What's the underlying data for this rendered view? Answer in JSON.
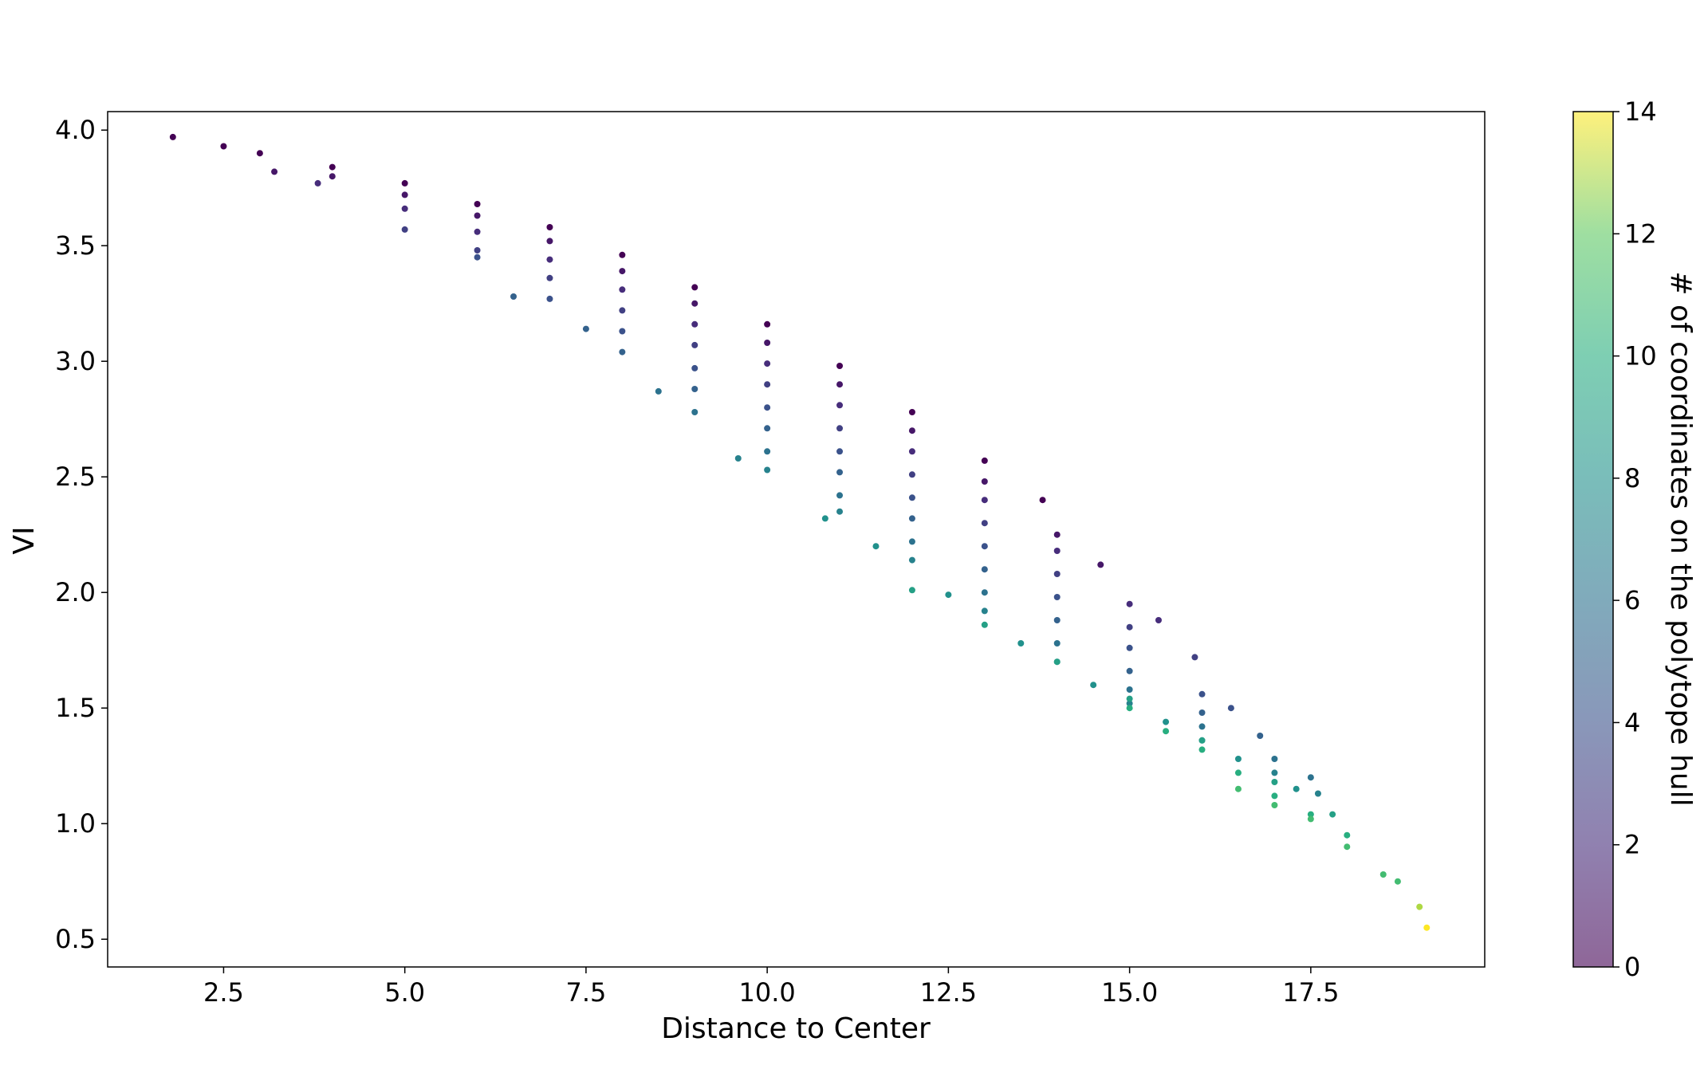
{
  "chart_data": {
    "type": "scatter",
    "title": "",
    "xlabel": "Distance to Center",
    "ylabel": "VI",
    "xlim": [
      0.9,
      19.9
    ],
    "ylim": [
      0.38,
      4.08
    ],
    "xticks": [
      "2.5",
      "5.0",
      "7.5",
      "10.0",
      "12.5",
      "15.0",
      "17.5"
    ],
    "yticks": [
      "0.5",
      "1.0",
      "1.5",
      "2.0",
      "2.5",
      "3.0",
      "3.5",
      "4.0"
    ],
    "colorbar": {
      "label": "# of coordinates on the polytope hull",
      "range": [
        0,
        14
      ],
      "ticks": [
        "0",
        "2",
        "4",
        "6",
        "8",
        "10",
        "12",
        "14"
      ],
      "colormap": "viridis",
      "alpha": 0.6
    },
    "grid": false,
    "legend": "none",
    "series": [
      {
        "color_value": 0,
        "points": [
          [
            1.8,
            3.97
          ],
          [
            2.5,
            3.93
          ],
          [
            3.0,
            3.9
          ],
          [
            4.0,
            3.84
          ],
          [
            5.0,
            3.77
          ],
          [
            6.0,
            3.68
          ],
          [
            7.0,
            3.58
          ],
          [
            8.0,
            3.46
          ],
          [
            9.0,
            3.32
          ],
          [
            10.0,
            3.16
          ],
          [
            11.0,
            2.98
          ],
          [
            12.0,
            2.78
          ],
          [
            13.0,
            2.57
          ],
          [
            13.8,
            2.4
          ]
        ]
      },
      {
        "color_value": 1,
        "points": [
          [
            3.2,
            3.82
          ],
          [
            4.0,
            3.8
          ],
          [
            5.0,
            3.72
          ],
          [
            6.0,
            3.63
          ],
          [
            7.0,
            3.52
          ],
          [
            8.0,
            3.39
          ],
          [
            9.0,
            3.25
          ],
          [
            10.0,
            3.08
          ],
          [
            11.0,
            2.9
          ],
          [
            12.0,
            2.7
          ],
          [
            13.0,
            2.48
          ],
          [
            14.0,
            2.25
          ],
          [
            14.6,
            2.12
          ]
        ]
      },
      {
        "color_value": 2,
        "points": [
          [
            3.8,
            3.77
          ],
          [
            5.0,
            3.66
          ],
          [
            6.0,
            3.56
          ],
          [
            7.0,
            3.44
          ],
          [
            8.0,
            3.31
          ],
          [
            9.0,
            3.16
          ],
          [
            10.0,
            2.99
          ],
          [
            11.0,
            2.81
          ],
          [
            12.0,
            2.61
          ],
          [
            13.0,
            2.4
          ],
          [
            14.0,
            2.18
          ],
          [
            15.0,
            1.95
          ],
          [
            15.4,
            1.88
          ]
        ]
      },
      {
        "color_value": 3,
        "points": [
          [
            5.0,
            3.57
          ],
          [
            6.0,
            3.48
          ],
          [
            7.0,
            3.36
          ],
          [
            8.0,
            3.22
          ],
          [
            9.0,
            3.07
          ],
          [
            10.0,
            2.9
          ],
          [
            11.0,
            2.71
          ],
          [
            12.0,
            2.51
          ],
          [
            13.0,
            2.3
          ],
          [
            14.0,
            2.08
          ],
          [
            15.0,
            1.85
          ],
          [
            15.9,
            1.72
          ]
        ]
      },
      {
        "color_value": 4,
        "points": [
          [
            6.0,
            3.45
          ],
          [
            7.0,
            3.27
          ],
          [
            8.0,
            3.13
          ],
          [
            9.0,
            2.97
          ],
          [
            10.0,
            2.8
          ],
          [
            11.0,
            2.61
          ],
          [
            12.0,
            2.41
          ],
          [
            13.0,
            2.2
          ],
          [
            14.0,
            1.98
          ],
          [
            15.0,
            1.76
          ],
          [
            16.0,
            1.56
          ],
          [
            16.4,
            1.5
          ]
        ]
      },
      {
        "color_value": 5,
        "points": [
          [
            6.5,
            3.28
          ],
          [
            7.5,
            3.14
          ],
          [
            8.0,
            3.04
          ],
          [
            9.0,
            2.88
          ],
          [
            10.0,
            2.71
          ],
          [
            11.0,
            2.52
          ],
          [
            12.0,
            2.32
          ],
          [
            13.0,
            2.1
          ],
          [
            14.0,
            1.88
          ],
          [
            15.0,
            1.66
          ],
          [
            16.0,
            1.48
          ],
          [
            16.8,
            1.38
          ]
        ]
      },
      {
        "color_value": 6,
        "points": [
          [
            8.5,
            2.87
          ],
          [
            9.0,
            2.78
          ],
          [
            10.0,
            2.61
          ],
          [
            11.0,
            2.42
          ],
          [
            12.0,
            2.22
          ],
          [
            13.0,
            2.0
          ],
          [
            14.0,
            1.78
          ],
          [
            15.0,
            1.58
          ],
          [
            16.0,
            1.42
          ],
          [
            17.0,
            1.28
          ],
          [
            17.5,
            1.2
          ]
        ]
      },
      {
        "color_value": 7,
        "points": [
          [
            9.6,
            2.58
          ],
          [
            10.0,
            2.53
          ],
          [
            11.0,
            2.35
          ],
          [
            12.0,
            2.14
          ],
          [
            13.0,
            1.92
          ],
          [
            14.0,
            1.7
          ],
          [
            15.0,
            1.52
          ],
          [
            16.0,
            1.36
          ],
          [
            17.0,
            1.22
          ],
          [
            17.6,
            1.13
          ]
        ]
      },
      {
        "color_value": 8,
        "points": [
          [
            10.8,
            2.32
          ],
          [
            11.5,
            2.2
          ],
          [
            12.5,
            1.99
          ],
          [
            13.5,
            1.78
          ],
          [
            14.5,
            1.6
          ],
          [
            15.5,
            1.44
          ],
          [
            16.5,
            1.28
          ],
          [
            17.3,
            1.15
          ]
        ]
      },
      {
        "color_value": 9,
        "points": [
          [
            12.0,
            2.01
          ],
          [
            13.0,
            1.86
          ],
          [
            14.0,
            1.7
          ],
          [
            15.0,
            1.54
          ],
          [
            16.0,
            1.36
          ],
          [
            17.0,
            1.18
          ],
          [
            17.8,
            1.04
          ]
        ]
      },
      {
        "color_value": 10,
        "points": [
          [
            15.0,
            1.5
          ],
          [
            15.5,
            1.4
          ],
          [
            16.0,
            1.32
          ],
          [
            16.5,
            1.22
          ],
          [
            17.0,
            1.12
          ],
          [
            17.5,
            1.04
          ],
          [
            18.0,
            0.95
          ]
        ]
      },
      {
        "color_value": 11,
        "points": [
          [
            16.5,
            1.15
          ],
          [
            17.0,
            1.08
          ],
          [
            17.5,
            1.02
          ],
          [
            18.0,
            0.9
          ],
          [
            18.5,
            0.78
          ],
          [
            18.7,
            0.75
          ]
        ]
      },
      {
        "color_value": 13,
        "points": [
          [
            19.0,
            0.64
          ]
        ]
      },
      {
        "color_value": 14,
        "points": [
          [
            19.1,
            0.55
          ]
        ]
      }
    ]
  }
}
